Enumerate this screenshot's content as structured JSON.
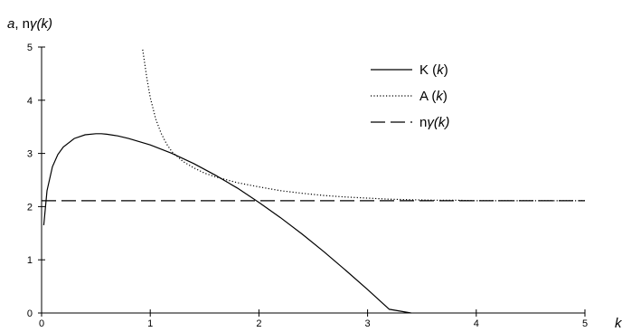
{
  "chart_data": {
    "type": "line",
    "ylabel": {
      "parts": [
        "a",
        ", n",
        "γ",
        "(",
        "k",
        ")"
      ],
      "italic": [
        true,
        false,
        true,
        true,
        true,
        true
      ]
    },
    "xlabel": "k",
    "xlim": [
      0,
      5
    ],
    "ylim": [
      0,
      5
    ],
    "x_ticks": [
      "0",
      "1",
      "2",
      "3",
      "4",
      "5"
    ],
    "y_ticks": [
      "0",
      "1",
      "2",
      "3",
      "4",
      "5"
    ],
    "grid": false,
    "legend_position": "top-right",
    "series": [
      {
        "name": "K(k)",
        "legend": {
          "parts": [
            "K",
            " (",
            "k",
            ")"
          ],
          "italic": [
            false,
            false,
            true,
            false
          ]
        },
        "style": "solid",
        "x": [
          0.02,
          0.05,
          0.1,
          0.15,
          0.2,
          0.3,
          0.4,
          0.5,
          0.55,
          0.6,
          0.7,
          0.8,
          1.0,
          1.2,
          1.4,
          1.6,
          1.8,
          2.0,
          2.2,
          2.4,
          2.6,
          2.8,
          3.0,
          3.2,
          3.4
        ],
        "y": [
          1.65,
          2.3,
          2.75,
          2.98,
          3.12,
          3.28,
          3.35,
          3.37,
          3.37,
          3.36,
          3.33,
          3.28,
          3.16,
          3.0,
          2.81,
          2.59,
          2.35,
          2.08,
          1.79,
          1.48,
          1.15,
          0.8,
          0.44,
          0.07,
          0.0
        ]
      },
      {
        "name": "A(k)",
        "legend": {
          "parts": [
            "A",
            " (",
            "k",
            ")"
          ],
          "italic": [
            false,
            false,
            true,
            false
          ]
        },
        "style": "dotted",
        "x": [
          0.93,
          0.97,
          1.0,
          1.05,
          1.1,
          1.15,
          1.2,
          1.3,
          1.4,
          1.5,
          1.6,
          1.8,
          2.0,
          2.2,
          2.4,
          2.6,
          2.8,
          3.0,
          3.2,
          3.4,
          3.6,
          3.8,
          4.0,
          4.5,
          5.0
        ],
        "y": [
          4.95,
          4.4,
          4.05,
          3.65,
          3.38,
          3.18,
          3.03,
          2.85,
          2.73,
          2.63,
          2.56,
          2.45,
          2.37,
          2.3,
          2.25,
          2.21,
          2.18,
          2.16,
          2.14,
          2.13,
          2.12,
          2.12,
          2.11,
          2.11,
          2.11
        ]
      },
      {
        "name": "nγ(k)",
        "legend": {
          "parts": [
            "n",
            "γ",
            "(",
            "k",
            ")"
          ],
          "italic": [
            false,
            true,
            true,
            true,
            true
          ]
        },
        "style": "dashed",
        "x": [
          0,
          5
        ],
        "y": [
          2.11,
          2.11
        ]
      }
    ]
  }
}
